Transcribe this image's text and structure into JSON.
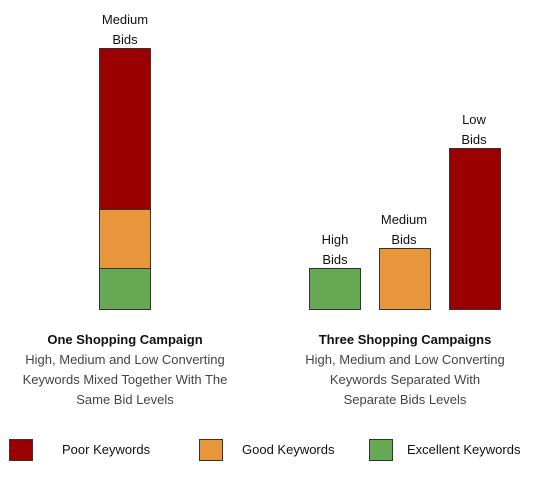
{
  "colors": {
    "poor": "#9b0000",
    "good": "#e8963c",
    "excellent": "#66a853"
  },
  "left": {
    "top_label": [
      "Medium",
      "Bids"
    ],
    "title": "One Shopping Campaign",
    "description": [
      "High, Medium and Low Converting",
      "Keywords Mixed Together With The",
      "Same Bid Levels"
    ]
  },
  "right": {
    "bars": [
      {
        "label": [
          "High",
          "Bids"
        ],
        "color_key": "excellent"
      },
      {
        "label": [
          "Medium",
          "Bids"
        ],
        "color_key": "good"
      },
      {
        "label": [
          "Low",
          "Bids"
        ],
        "color_key": "poor"
      }
    ],
    "title": "Three Shopping Campaigns",
    "description": [
      "High, Medium and Low Converting",
      "Keywords Separated With",
      "Separate Bids Levels"
    ]
  },
  "legend": [
    {
      "label": "Poor Keywords",
      "color_key": "poor"
    },
    {
      "label": "Good Keywords",
      "color_key": "good"
    },
    {
      "label": "Excellent Keywords",
      "color_key": "excellent"
    }
  ]
}
